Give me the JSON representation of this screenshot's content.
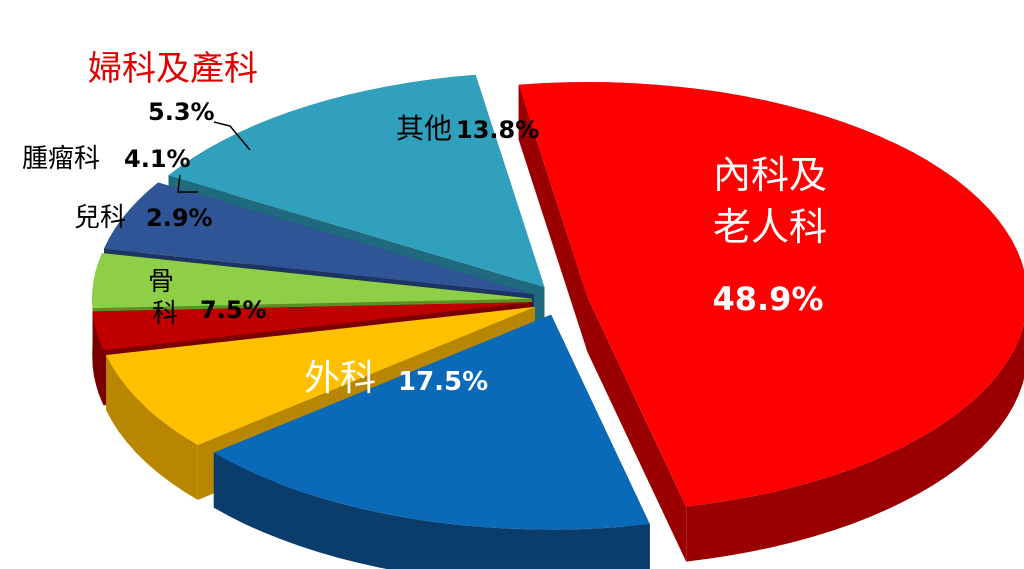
{
  "chart_data": {
    "type": "pie",
    "title": "",
    "slices": [
      {
        "label": "內科及老人科",
        "label_lines": [
          "內科及",
          "老人科"
        ],
        "value": 48.9,
        "value_label": "48.9%",
        "color": "#ff0000",
        "dark": "#9b0000"
      },
      {
        "label": "外科",
        "value": 17.5,
        "value_label": "17.5%",
        "color": "#0b6ab8",
        "dark": "#0a3d6b"
      },
      {
        "label": "骨科",
        "label_lines": [
          "骨",
          "科"
        ],
        "value": 7.5,
        "value_label": "7.5%",
        "color": "#ffc000",
        "dark": "#b88600"
      },
      {
        "label": "兒科",
        "value": 2.9,
        "value_label": "2.9%",
        "color": "#c00000",
        "dark": "#7a0000"
      },
      {
        "label": "腫瘤科",
        "value": 4.1,
        "value_label": "4.1%",
        "color": "#8fcf47",
        "dark": "#5c8f24"
      },
      {
        "label": "婦科及產科",
        "value": 5.3,
        "value_label": "5.3%",
        "color": "#2f5597",
        "dark": "#1d3561",
        "label_color": "#e00000"
      },
      {
        "label": "其他",
        "value": 13.8,
        "value_label": "13.8%",
        "color": "#31a0bd",
        "dark": "#1f6a7e"
      }
    ]
  }
}
